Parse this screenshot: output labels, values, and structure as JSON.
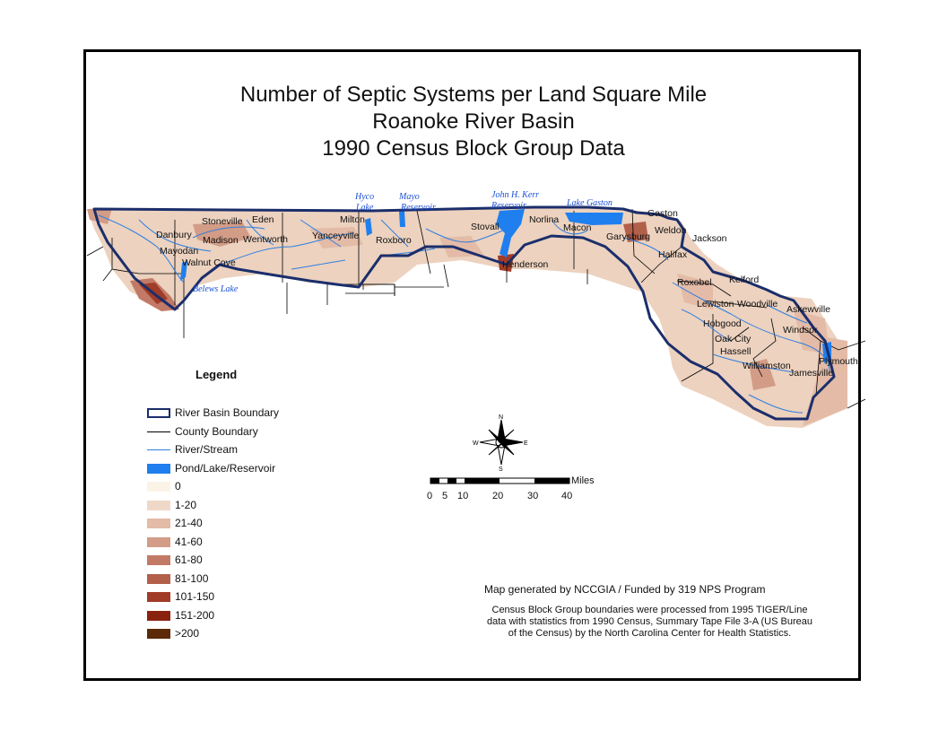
{
  "title": {
    "line1": "Number of Septic Systems per Land Square Mile",
    "line2": "Roanoke River Basin",
    "line3": "1990 Census Block Group Data"
  },
  "cities": [
    "Danbury",
    "Mayodan",
    "Walnut Cove",
    "Stoneville",
    "Eden",
    "Madison",
    "Wentworth",
    "Yanceyville",
    "Milton",
    "Roxboro",
    "Stovall",
    "Henderson",
    "Norlina",
    "Macon",
    "Gaston",
    "Garysburg",
    "Weldon",
    "Jackson",
    "Halifax",
    "Roxobel",
    "Kelford",
    "Lewiston-Woodville",
    "Askewville",
    "Hobgood",
    "Windsor",
    "Oak City",
    "Hassell",
    "Williamston",
    "Jamesville",
    "Plymouth"
  ],
  "water_bodies": {
    "hyco": [
      "Hyco",
      "Lake"
    ],
    "mayo": [
      "Mayo",
      "Reservoir"
    ],
    "kerr": [
      "John H. Kerr",
      "Reservoir"
    ],
    "gaston": "Lake Gaston",
    "belews": "Belews Lake"
  },
  "legend": {
    "title": "Legend",
    "items": [
      {
        "label": "River Basin Boundary",
        "kind": "basin",
        "color": "#1b2e6b"
      },
      {
        "label": "County Boundary",
        "kind": "county",
        "color": "#000000"
      },
      {
        "label": "River/Stream",
        "kind": "river",
        "color": "#2f7fe0"
      },
      {
        "label": "Pond/Lake/Reservoir",
        "kind": "fill",
        "color": "#1f7fef"
      },
      {
        "label": "0",
        "kind": "fill",
        "color": "#fbf4e6"
      },
      {
        "label": "1-20",
        "kind": "fill",
        "color": "#f0d8c8"
      },
      {
        "label": "21-40",
        "kind": "fill",
        "color": "#e3bba7"
      },
      {
        "label": "41-60",
        "kind": "fill",
        "color": "#d29c87"
      },
      {
        "label": "61-80",
        "kind": "fill",
        "color": "#c27a66"
      },
      {
        "label": "81-100",
        "kind": "fill",
        "color": "#b2604a"
      },
      {
        "label": "101-150",
        "kind": "fill",
        "color": "#a03c28"
      },
      {
        "label": "151-200",
        "kind": "fill",
        "color": "#8a2210"
      },
      {
        "label": ">200",
        "kind": "fill",
        "color": "#5c2a08"
      }
    ]
  },
  "compass": {
    "n": "N",
    "s": "S",
    "e": "E",
    "w": "W"
  },
  "scale_bar": {
    "unit": "Miles",
    "ticks": [
      "0",
      "5",
      "10",
      "20",
      "30",
      "40"
    ]
  },
  "credit": "Map generated by NCCGIA / Funded by 319 NPS Program",
  "note": [
    "Census Block Group boundaries were processed from 1995 TIGER/Line",
    "data with statistics from 1990 Census, Summary Tape File 3-A (US Bureau",
    "of the Census) by the North Carolina Center for Health Statistics."
  ]
}
